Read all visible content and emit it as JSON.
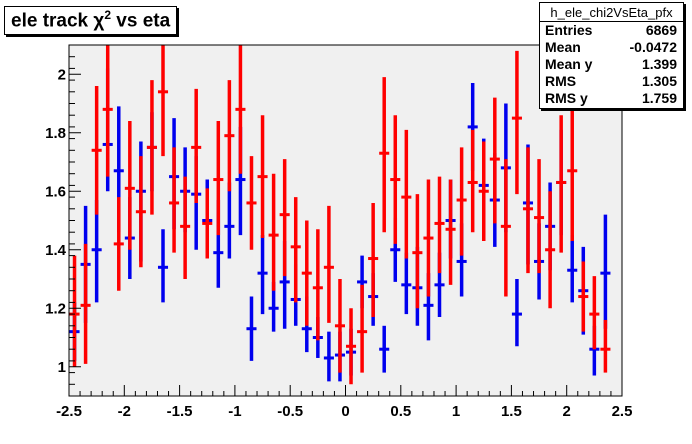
{
  "chart_data": {
    "type": "scatter",
    "title": "ele track χ",
    "title_sup": "2",
    "title_suffix": " vs eta",
    "xlim": [
      -2.5,
      2.5
    ],
    "ylim": [
      0.9,
      2.1
    ],
    "x_ticks": [
      -2.5,
      -2,
      -1.5,
      -1,
      -0.5,
      0,
      0.5,
      1,
      1.5,
      2,
      2.5
    ],
    "y_ticks": [
      1,
      1.2,
      1.4,
      1.6,
      1.8,
      2
    ],
    "x_tick_labels": [
      "-2.5",
      "-2",
      "-1.5",
      "-1",
      "-0.5",
      "0",
      "0.5",
      "1",
      "1.5",
      "2",
      "2.5"
    ],
    "y_tick_labels": [
      "1",
      "1.2",
      "1.4",
      "1.6",
      "1.8",
      "2"
    ],
    "series": [
      {
        "color": "#0000ee",
        "points": [
          {
            "x": -2.45,
            "y": 1.12,
            "lo": 1.02,
            "hi": 1.22
          },
          {
            "x": -2.35,
            "y": 1.35,
            "lo": 1.15,
            "hi": 1.55
          },
          {
            "x": -2.25,
            "y": 1.4,
            "lo": 1.22,
            "hi": 1.57
          },
          {
            "x": -2.15,
            "y": 1.76,
            "lo": 1.6,
            "hi": 2.02
          },
          {
            "x": -2.05,
            "y": 1.67,
            "lo": 1.46,
            "hi": 1.89
          },
          {
            "x": -1.95,
            "y": 1.44,
            "lo": 1.3,
            "hi": 1.58
          },
          {
            "x": -1.85,
            "y": 1.6,
            "lo": 1.36,
            "hi": 1.77
          },
          {
            "x": -1.75,
            "y": 1.75,
            "lo": 1.6,
            "hi": 1.87
          },
          {
            "x": -1.65,
            "y": 1.34,
            "lo": 1.22,
            "hi": 1.47
          },
          {
            "x": -1.55,
            "y": 1.65,
            "lo": 1.47,
            "hi": 1.85
          },
          {
            "x": -1.45,
            "y": 1.6,
            "lo": 1.46,
            "hi": 1.75
          },
          {
            "x": -1.35,
            "y": 1.59,
            "lo": 1.4,
            "hi": 1.72
          },
          {
            "x": -1.25,
            "y": 1.5,
            "lo": 1.38,
            "hi": 1.64
          },
          {
            "x": -1.15,
            "y": 1.39,
            "lo": 1.27,
            "hi": 1.57
          },
          {
            "x": -1.05,
            "y": 1.48,
            "lo": 1.37,
            "hi": 1.63
          },
          {
            "x": -0.95,
            "y": 1.64,
            "lo": 1.45,
            "hi": 1.82
          },
          {
            "x": -0.85,
            "y": 1.13,
            "lo": 1.02,
            "hi": 1.24
          },
          {
            "x": -0.75,
            "y": 1.32,
            "lo": 1.18,
            "hi": 1.45
          },
          {
            "x": -0.65,
            "y": 1.2,
            "lo": 1.12,
            "hi": 1.29
          },
          {
            "x": -0.55,
            "y": 1.29,
            "lo": 1.13,
            "hi": 1.43
          },
          {
            "x": -0.45,
            "y": 1.23,
            "lo": 1.14,
            "hi": 1.35
          },
          {
            "x": -0.35,
            "y": 1.13,
            "lo": 1.05,
            "hi": 1.24
          },
          {
            "x": -0.25,
            "y": 1.1,
            "lo": 1.03,
            "hi": 1.17
          },
          {
            "x": -0.15,
            "y": 1.03,
            "lo": 0.95,
            "hi": 1.12
          },
          {
            "x": -0.05,
            "y": 1.04,
            "lo": 0.95,
            "hi": 1.12
          },
          {
            "x": 0.05,
            "y": 1.05,
            "lo": 0.97,
            "hi": 1.13
          },
          {
            "x": 0.15,
            "y": 1.29,
            "lo": 1.2,
            "hi": 1.38
          },
          {
            "x": 0.25,
            "y": 1.24,
            "lo": 1.14,
            "hi": 1.32
          },
          {
            "x": 0.35,
            "y": 1.06,
            "lo": 0.98,
            "hi": 1.14
          },
          {
            "x": 0.45,
            "y": 1.4,
            "lo": 1.29,
            "hi": 1.51
          },
          {
            "x": 0.55,
            "y": 1.28,
            "lo": 1.18,
            "hi": 1.39
          },
          {
            "x": 0.65,
            "y": 1.27,
            "lo": 1.14,
            "hi": 1.41
          },
          {
            "x": 0.75,
            "y": 1.21,
            "lo": 1.09,
            "hi": 1.32
          },
          {
            "x": 0.85,
            "y": 1.28,
            "lo": 1.17,
            "hi": 1.39
          },
          {
            "x": 0.95,
            "y": 1.5,
            "lo": 1.37,
            "hi": 1.64
          },
          {
            "x": 1.05,
            "y": 1.36,
            "lo": 1.24,
            "hi": 1.49
          },
          {
            "x": 1.15,
            "y": 1.82,
            "lo": 1.67,
            "hi": 1.97
          },
          {
            "x": 1.25,
            "y": 1.62,
            "lo": 1.45,
            "hi": 1.78
          },
          {
            "x": 1.35,
            "y": 1.57,
            "lo": 1.41,
            "hi": 1.73
          },
          {
            "x": 1.45,
            "y": 1.68,
            "lo": 1.46,
            "hi": 1.9
          },
          {
            "x": 1.55,
            "y": 1.18,
            "lo": 1.07,
            "hi": 1.3
          },
          {
            "x": 1.65,
            "y": 1.56,
            "lo": 1.35,
            "hi": 1.76
          },
          {
            "x": 1.75,
            "y": 1.36,
            "lo": 1.23,
            "hi": 1.49
          },
          {
            "x": 1.85,
            "y": 1.48,
            "lo": 1.33,
            "hi": 1.63
          },
          {
            "x": 1.95,
            "y": 1.63,
            "lo": 1.45,
            "hi": 1.81
          },
          {
            "x": 2.05,
            "y": 1.33,
            "lo": 1.22,
            "hi": 1.45
          },
          {
            "x": 2.15,
            "y": 1.26,
            "lo": 1.11,
            "hi": 1.41
          },
          {
            "x": 2.25,
            "y": 1.06,
            "lo": 0.97,
            "hi": 1.14
          },
          {
            "x": 2.35,
            "y": 1.32,
            "lo": 1.13,
            "hi": 1.52
          }
        ]
      },
      {
        "color": "#ff0000",
        "points": [
          {
            "x": -2.45,
            "y": 1.18,
            "lo": 1.0,
            "hi": 1.38
          },
          {
            "x": -2.35,
            "y": 1.21,
            "lo": 1.01,
            "hi": 1.42
          },
          {
            "x": -2.25,
            "y": 1.74,
            "lo": 1.52,
            "hi": 1.96
          },
          {
            "x": -2.15,
            "y": 1.88,
            "lo": 1.65,
            "hi": 2.12
          },
          {
            "x": -2.05,
            "y": 1.42,
            "lo": 1.26,
            "hi": 1.58
          },
          {
            "x": -1.95,
            "y": 1.61,
            "lo": 1.4,
            "hi": 1.84
          },
          {
            "x": -1.85,
            "y": 1.53,
            "lo": 1.34,
            "hi": 1.72
          },
          {
            "x": -1.75,
            "y": 1.75,
            "lo": 1.52,
            "hi": 1.98
          },
          {
            "x": -1.65,
            "y": 1.94,
            "lo": 1.72,
            "hi": 2.12
          },
          {
            "x": -1.55,
            "y": 1.56,
            "lo": 1.39,
            "hi": 1.75
          },
          {
            "x": -1.45,
            "y": 1.48,
            "lo": 1.3,
            "hi": 1.65
          },
          {
            "x": -1.35,
            "y": 1.75,
            "lo": 1.56,
            "hi": 1.95
          },
          {
            "x": -1.25,
            "y": 1.49,
            "lo": 1.37,
            "hi": 1.61
          },
          {
            "x": -1.15,
            "y": 1.64,
            "lo": 1.45,
            "hi": 1.84
          },
          {
            "x": -1.05,
            "y": 1.79,
            "lo": 1.6,
            "hi": 1.98
          },
          {
            "x": -0.95,
            "y": 1.88,
            "lo": 1.66,
            "hi": 2.1
          },
          {
            "x": -0.85,
            "y": 1.56,
            "lo": 1.4,
            "hi": 1.72
          },
          {
            "x": -0.75,
            "y": 1.65,
            "lo": 1.44,
            "hi": 1.86
          },
          {
            "x": -0.65,
            "y": 1.45,
            "lo": 1.26,
            "hi": 1.66
          },
          {
            "x": -0.55,
            "y": 1.52,
            "lo": 1.31,
            "hi": 1.71
          },
          {
            "x": -0.45,
            "y": 1.41,
            "lo": 1.22,
            "hi": 1.58
          },
          {
            "x": -0.35,
            "y": 1.32,
            "lo": 1.14,
            "hi": 1.5
          },
          {
            "x": -0.25,
            "y": 1.27,
            "lo": 1.09,
            "hi": 1.47
          },
          {
            "x": -0.15,
            "y": 1.34,
            "lo": 1.15,
            "hi": 1.55
          },
          {
            "x": -0.05,
            "y": 1.14,
            "lo": 0.98,
            "hi": 1.3
          },
          {
            "x": 0.05,
            "y": 1.07,
            "lo": 0.94,
            "hi": 1.2
          },
          {
            "x": 0.15,
            "y": 1.12,
            "lo": 0.98,
            "hi": 1.28
          },
          {
            "x": 0.25,
            "y": 1.37,
            "lo": 1.17,
            "hi": 1.56
          },
          {
            "x": 0.35,
            "y": 1.73,
            "lo": 1.46,
            "hi": 1.99
          },
          {
            "x": 0.45,
            "y": 1.64,
            "lo": 1.42,
            "hi": 1.86
          },
          {
            "x": 0.55,
            "y": 1.58,
            "lo": 1.37,
            "hi": 1.81
          },
          {
            "x": 0.65,
            "y": 1.39,
            "lo": 1.2,
            "hi": 1.59
          },
          {
            "x": 0.75,
            "y": 1.44,
            "lo": 1.24,
            "hi": 1.64
          },
          {
            "x": 0.85,
            "y": 1.49,
            "lo": 1.32,
            "hi": 1.65
          },
          {
            "x": 0.95,
            "y": 1.47,
            "lo": 1.28,
            "hi": 1.64
          },
          {
            "x": 1.05,
            "y": 1.57,
            "lo": 1.38,
            "hi": 1.75
          },
          {
            "x": 1.15,
            "y": 1.63,
            "lo": 1.46,
            "hi": 1.81
          },
          {
            "x": 1.25,
            "y": 1.6,
            "lo": 1.43,
            "hi": 1.77
          },
          {
            "x": 1.35,
            "y": 1.71,
            "lo": 1.49,
            "hi": 1.92
          },
          {
            "x": 1.45,
            "y": 1.48,
            "lo": 1.24,
            "hi": 1.71
          },
          {
            "x": 1.55,
            "y": 1.85,
            "lo": 1.59,
            "hi": 2.08
          },
          {
            "x": 1.65,
            "y": 1.54,
            "lo": 1.32,
            "hi": 1.75
          },
          {
            "x": 1.75,
            "y": 1.51,
            "lo": 1.32,
            "hi": 1.71
          },
          {
            "x": 1.85,
            "y": 1.4,
            "lo": 1.2,
            "hi": 1.6
          },
          {
            "x": 1.95,
            "y": 1.63,
            "lo": 1.39,
            "hi": 1.86
          },
          {
            "x": 2.05,
            "y": 1.67,
            "lo": 1.43,
            "hi": 1.95
          },
          {
            "x": 2.15,
            "y": 1.24,
            "lo": 1.12,
            "hi": 1.36
          },
          {
            "x": 2.25,
            "y": 1.18,
            "lo": 1.06,
            "hi": 1.31
          },
          {
            "x": 2.35,
            "y": 1.06,
            "lo": 0.98,
            "hi": 1.16
          }
        ]
      }
    ]
  },
  "stats": {
    "name": "h_ele_chi2VsEta_pfx",
    "rows": [
      {
        "label": "Entries",
        "value": "6869"
      },
      {
        "label": "Mean",
        "value": "-0.0472"
      },
      {
        "label": "Mean y",
        "value": "1.399"
      },
      {
        "label": "RMS",
        "value": "1.305"
      },
      {
        "label": "RMS y",
        "value": "1.759"
      }
    ]
  },
  "colors": {
    "frame_bg": "#f0f0f0",
    "page_bg": "#ffffff"
  }
}
